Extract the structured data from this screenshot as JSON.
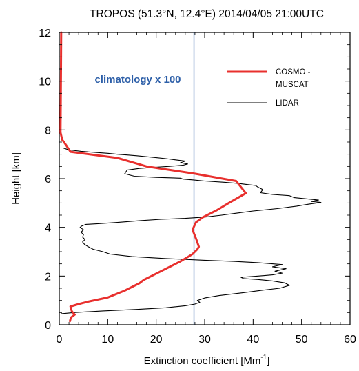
{
  "chart_data": {
    "type": "line",
    "title": "TROPOS (51.3°N, 12.4°E) 2014/04/05 21:00UTC",
    "xlabel": "Extinction coefficient [Mm",
    "xlabel_sup": "-1",
    "xlabel_end": "]",
    "ylabel": "Height [km]",
    "xlim": [
      0,
      60
    ],
    "ylim": [
      0,
      12
    ],
    "xticks": [
      "0",
      "10",
      "20",
      "30",
      "40",
      "50",
      "60"
    ],
    "yticks": [
      "0",
      "2",
      "4",
      "6",
      "8",
      "10",
      "12"
    ],
    "grid": false,
    "legend_position": "top-right",
    "colors": {
      "cosmo": "#e8302e",
      "lidar": "#000000",
      "climatology": "#2d5fa8"
    },
    "annotation": "climatology x 100",
    "climatology_x": 27.8,
    "series": [
      {
        "name": "COSMO-MUSCAT",
        "legend_lines": [
          "COSMO -",
          "MUSCAT"
        ],
        "points": [
          [
            2.2,
            0.15
          ],
          [
            2.4,
            0.3
          ],
          [
            3.2,
            0.42
          ],
          [
            2.6,
            0.55
          ],
          [
            2.3,
            0.75
          ],
          [
            4.0,
            0.85
          ],
          [
            6.0,
            0.95
          ],
          [
            10.0,
            1.12
          ],
          [
            13.5,
            1.4
          ],
          [
            16.5,
            1.7
          ],
          [
            17.5,
            1.85
          ],
          [
            20.0,
            2.1
          ],
          [
            25.0,
            2.6
          ],
          [
            27.5,
            2.9
          ],
          [
            28.5,
            3.1
          ],
          [
            28.8,
            3.2
          ],
          [
            28.3,
            3.5
          ],
          [
            27.5,
            3.9
          ],
          [
            28.2,
            4.2
          ],
          [
            29.5,
            4.4
          ],
          [
            32.5,
            4.7
          ],
          [
            35.0,
            5.0
          ],
          [
            38.5,
            5.4
          ],
          [
            36.5,
            5.9
          ],
          [
            28.0,
            6.2
          ],
          [
            18.0,
            6.5
          ],
          [
            12.0,
            6.85
          ],
          [
            2.3,
            7.1
          ],
          [
            1.5,
            7.35
          ],
          [
            0.6,
            7.6
          ],
          [
            0.25,
            7.9
          ],
          [
            0.3,
            9.0
          ],
          [
            0.35,
            10.5
          ],
          [
            0.4,
            12.0
          ]
        ]
      },
      {
        "name": "LIDAR",
        "legend_lines": [
          "LIDAR"
        ],
        "points": [
          [
            0.3,
            0.45
          ],
          [
            3.0,
            0.5
          ],
          [
            9.0,
            0.57
          ],
          [
            16.0,
            0.63
          ],
          [
            22.0,
            0.7
          ],
          [
            26.0,
            0.78
          ],
          [
            28.0,
            0.85
          ],
          [
            29.0,
            0.92
          ],
          [
            28.5,
            1.0
          ],
          [
            30.0,
            1.1
          ],
          [
            33.0,
            1.2
          ],
          [
            38.0,
            1.32
          ],
          [
            42.0,
            1.42
          ],
          [
            45.5,
            1.5
          ],
          [
            47.5,
            1.62
          ],
          [
            46.5,
            1.72
          ],
          [
            44.0,
            1.8
          ],
          [
            41.0,
            1.86
          ],
          [
            38.0,
            1.9
          ],
          [
            37.5,
            1.95
          ],
          [
            41.0,
            2.0
          ],
          [
            44.0,
            2.05
          ],
          [
            46.0,
            2.12
          ],
          [
            44.5,
            2.2
          ],
          [
            46.8,
            2.3
          ],
          [
            44.0,
            2.38
          ],
          [
            46.0,
            2.47
          ],
          [
            41.0,
            2.55
          ],
          [
            36.0,
            2.6
          ],
          [
            30.0,
            2.65
          ],
          [
            22.0,
            2.72
          ],
          [
            15.0,
            2.8
          ],
          [
            10.5,
            2.9
          ],
          [
            9.0,
            3.0
          ],
          [
            7.0,
            3.1
          ],
          [
            6.0,
            3.2
          ],
          [
            5.2,
            3.3
          ],
          [
            4.8,
            3.4
          ],
          [
            5.3,
            3.5
          ],
          [
            4.8,
            3.6
          ],
          [
            5.0,
            3.7
          ],
          [
            4.5,
            3.8
          ],
          [
            5.0,
            3.9
          ],
          [
            4.3,
            4.0
          ],
          [
            4.6,
            4.05
          ],
          [
            5.5,
            4.12
          ],
          [
            8.0,
            4.15
          ],
          [
            12.0,
            4.2
          ],
          [
            17.0,
            4.28
          ],
          [
            21.0,
            4.33
          ],
          [
            26.0,
            4.37
          ],
          [
            30.0,
            4.42
          ],
          [
            33.5,
            4.5
          ],
          [
            36.5,
            4.58
          ],
          [
            40.0,
            4.67
          ],
          [
            45.0,
            4.77
          ],
          [
            49.0,
            4.87
          ],
          [
            51.5,
            4.95
          ],
          [
            54.0,
            5.02
          ],
          [
            52.0,
            5.06
          ],
          [
            53.5,
            5.12
          ],
          [
            51.0,
            5.17
          ],
          [
            48.5,
            5.22
          ],
          [
            47.5,
            5.3
          ],
          [
            44.0,
            5.35
          ],
          [
            41.5,
            5.42
          ],
          [
            42.0,
            5.55
          ],
          [
            41.0,
            5.65
          ],
          [
            40.5,
            5.72
          ],
          [
            39.0,
            5.75
          ],
          [
            37.0,
            5.8
          ],
          [
            34.0,
            5.85
          ],
          [
            30.0,
            5.9
          ],
          [
            27.5,
            5.95
          ],
          [
            25.5,
            5.98
          ],
          [
            25.0,
            6.02
          ],
          [
            20.0,
            6.05
          ],
          [
            15.5,
            6.1
          ],
          [
            13.5,
            6.2
          ],
          [
            14.0,
            6.35
          ],
          [
            16.5,
            6.42
          ],
          [
            19.5,
            6.46
          ],
          [
            22.5,
            6.5
          ],
          [
            25.5,
            6.55
          ],
          [
            26.5,
            6.6
          ],
          [
            25.0,
            6.65
          ],
          [
            26.0,
            6.72
          ],
          [
            24.0,
            6.77
          ],
          [
            22.0,
            6.82
          ],
          [
            20.0,
            6.86
          ],
          [
            18.0,
            6.9
          ],
          [
            16.0,
            6.94
          ],
          [
            14.0,
            6.97
          ],
          [
            12.0,
            7.0
          ],
          [
            10.0,
            7.04
          ],
          [
            7.0,
            7.08
          ],
          [
            4.5,
            7.12
          ],
          [
            2.0,
            7.18
          ],
          [
            0.9,
            7.25
          ]
        ]
      }
    ]
  }
}
